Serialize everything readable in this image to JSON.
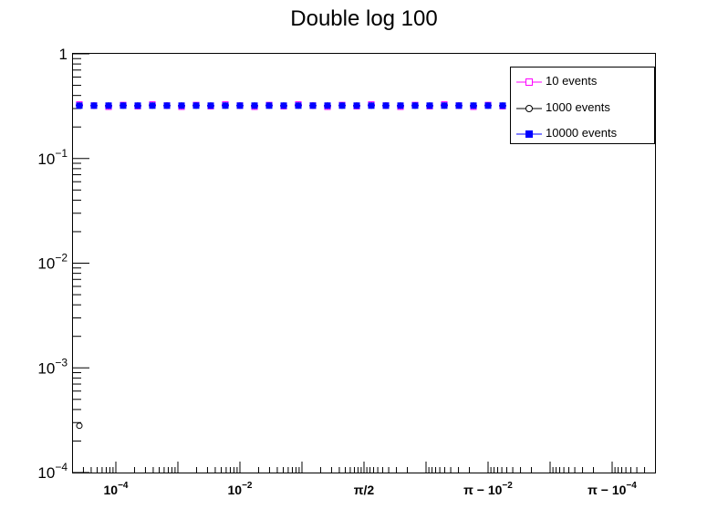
{
  "chart_data": {
    "type": "scatter",
    "title": "Double log 100",
    "xlabel": "",
    "ylabel": "",
    "y_scale": "log",
    "ylim": [
      0.0001,
      1
    ],
    "y_tick_labels": [
      {
        "base": "10",
        "exp": "−4"
      },
      {
        "base": "10",
        "exp": "−3"
      },
      {
        "base": "10",
        "exp": "−2"
      },
      {
        "base": "10",
        "exp": "−1"
      },
      {
        "base": "1",
        "exp": ""
      }
    ],
    "x_scale": "double-log (symmetric around π/2)",
    "x_tick_labels": [
      {
        "base": "10",
        "exp": "−4"
      },
      {
        "base": "10",
        "exp": "−2"
      },
      {
        "base": "π/2",
        "exp": ""
      },
      {
        "base": "π − 10",
        "exp": "−2"
      },
      {
        "base": "π − 10",
        "exp": "−4"
      }
    ],
    "grid": false,
    "legend_position": "top-right",
    "series": [
      {
        "name": "10 events",
        "color": "#ff00ff",
        "marker": "open-square",
        "y_level": 0.32,
        "points": 40
      },
      {
        "name": "1000 events",
        "color": "#000000",
        "marker": "open-circle",
        "y_level": 0.32,
        "points": 40,
        "extra_point_y": 0.00028
      },
      {
        "name": "10000 events",
        "color": "#0000ff",
        "marker": "filled-square",
        "y_level": 0.32,
        "points": 40
      }
    ]
  }
}
